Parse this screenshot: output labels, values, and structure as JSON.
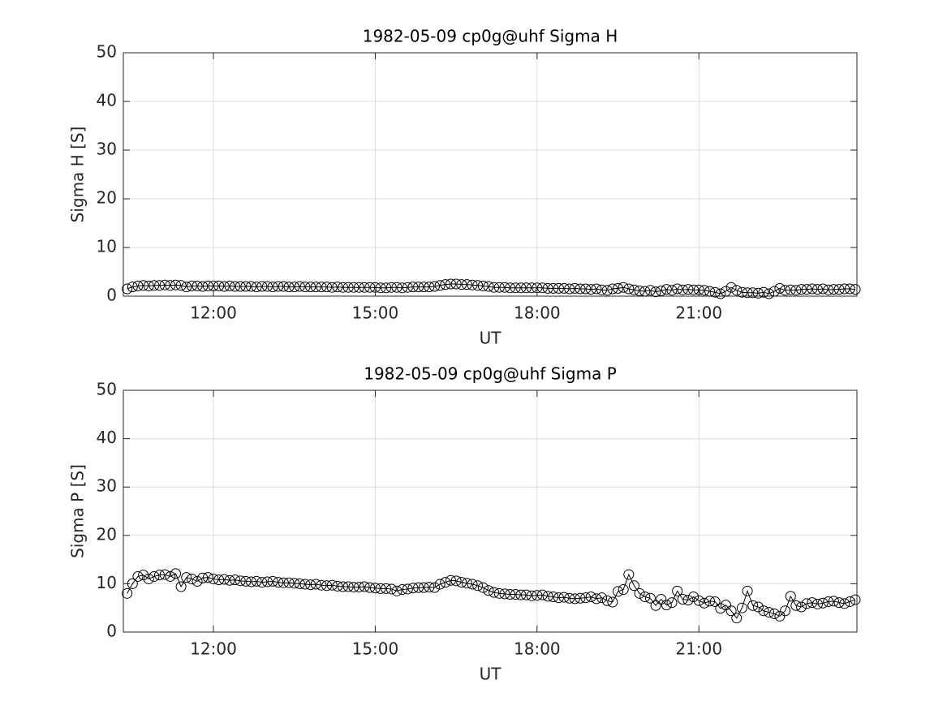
{
  "chart_data": [
    {
      "type": "line",
      "title": "1982-05-09  cp0g@uhf Sigma H",
      "xlabel": "UT",
      "ylabel": "Sigma H [S]",
      "color": "#000000",
      "marker": "circle",
      "grid": true,
      "xlim": [
        10.33,
        23.93
      ],
      "xticks": [
        {
          "value": 12,
          "label": "12:00"
        },
        {
          "value": 15,
          "label": "15:00"
        },
        {
          "value": 18,
          "label": "18:00"
        },
        {
          "value": 21,
          "label": "21:00"
        }
      ],
      "ylim": [
        0,
        50
      ],
      "yticks": [
        0,
        10,
        20,
        30,
        40,
        50
      ],
      "x": [
        10.4,
        10.5,
        10.6,
        10.7,
        10.8,
        10.9,
        11.0,
        11.1,
        11.2,
        11.3,
        11.4,
        11.5,
        11.6,
        11.7,
        11.8,
        11.9,
        12.0,
        12.1,
        12.2,
        12.3,
        12.4,
        12.5,
        12.6,
        12.7,
        12.8,
        12.9,
        13.0,
        13.1,
        13.2,
        13.3,
        13.4,
        13.5,
        13.6,
        13.7,
        13.8,
        13.9,
        14.0,
        14.1,
        14.2,
        14.3,
        14.4,
        14.5,
        14.6,
        14.7,
        14.8,
        14.9,
        15.0,
        15.1,
        15.2,
        15.3,
        15.4,
        15.5,
        15.6,
        15.7,
        15.8,
        15.9,
        16.0,
        16.1,
        16.2,
        16.3,
        16.4,
        16.5,
        16.6,
        16.7,
        16.8,
        16.9,
        17.0,
        17.1,
        17.2,
        17.3,
        17.4,
        17.5,
        17.6,
        17.7,
        17.8,
        17.9,
        18.0,
        18.1,
        18.2,
        18.3,
        18.4,
        18.5,
        18.6,
        18.7,
        18.8,
        18.9,
        19.0,
        19.1,
        19.2,
        19.3,
        19.4,
        19.5,
        19.6,
        19.7,
        19.8,
        19.9,
        20.0,
        20.1,
        20.2,
        20.3,
        20.4,
        20.5,
        20.6,
        20.7,
        20.8,
        20.9,
        21.0,
        21.1,
        21.2,
        21.3,
        21.4,
        21.5,
        21.6,
        21.7,
        21.8,
        21.9,
        22.0,
        22.1,
        22.2,
        22.3,
        22.4,
        22.5,
        22.6,
        22.7,
        22.8,
        22.9,
        23.0,
        23.1,
        23.2,
        23.3,
        23.4,
        23.5,
        23.6,
        23.7,
        23.8,
        23.9
      ],
      "values": [
        1.5,
        1.9,
        2.1,
        2.2,
        2.1,
        2.2,
        2.2,
        2.3,
        2.2,
        2.3,
        2.2,
        1.9,
        2.1,
        2.1,
        2.0,
        2.1,
        2.1,
        2.1,
        2.0,
        2.1,
        2.0,
        2.0,
        2.0,
        2.0,
        1.9,
        2.0,
        2.0,
        1.9,
        2.0,
        2.0,
        1.9,
        1.9,
        2.0,
        1.9,
        1.9,
        1.9,
        1.9,
        1.9,
        1.8,
        1.9,
        1.8,
        1.8,
        1.8,
        1.8,
        1.8,
        1.8,
        1.8,
        1.7,
        1.7,
        1.8,
        1.8,
        1.7,
        1.8,
        1.9,
        1.9,
        1.9,
        1.9,
        2.0,
        2.2,
        2.4,
        2.5,
        2.5,
        2.4,
        2.4,
        2.3,
        2.2,
        2.1,
        2.0,
        1.8,
        1.8,
        1.8,
        1.7,
        1.7,
        1.7,
        1.7,
        1.7,
        1.7,
        1.7,
        1.6,
        1.6,
        1.6,
        1.6,
        1.5,
        1.6,
        1.5,
        1.5,
        1.4,
        1.5,
        1.3,
        1.2,
        1.5,
        1.6,
        1.8,
        1.5,
        1.3,
        1.1,
        1.0,
        1.2,
        0.9,
        1.1,
        1.4,
        1.2,
        1.5,
        1.3,
        1.4,
        1.3,
        1.3,
        1.2,
        1.0,
        0.8,
        0.5,
        1.0,
        1.8,
        1.2,
        0.8,
        0.7,
        0.7,
        0.6,
        0.8,
        0.5,
        1.0,
        1.6,
        1.2,
        1.3,
        1.2,
        1.4,
        1.4,
        1.5,
        1.4,
        1.5,
        1.3,
        1.4,
        1.4,
        1.5,
        1.5,
        1.4
      ]
    },
    {
      "type": "line",
      "title": "1982-05-09  cp0g@uhf Sigma P",
      "xlabel": "UT",
      "ylabel": "Sigma P [S]",
      "color": "#000000",
      "marker": "circle",
      "grid": true,
      "xlim": [
        10.33,
        23.93
      ],
      "xticks": [
        {
          "value": 12,
          "label": "12:00"
        },
        {
          "value": 15,
          "label": "15:00"
        },
        {
          "value": 18,
          "label": "18:00"
        },
        {
          "value": 21,
          "label": "21:00"
        }
      ],
      "ylim": [
        0,
        50
      ],
      "yticks": [
        0,
        10,
        20,
        30,
        40,
        50
      ],
      "x": [
        10.4,
        10.5,
        10.6,
        10.7,
        10.8,
        10.9,
        11.0,
        11.1,
        11.2,
        11.3,
        11.4,
        11.5,
        11.6,
        11.7,
        11.8,
        11.9,
        12.0,
        12.1,
        12.2,
        12.3,
        12.4,
        12.5,
        12.6,
        12.7,
        12.8,
        12.9,
        13.0,
        13.1,
        13.2,
        13.3,
        13.4,
        13.5,
        13.6,
        13.7,
        13.8,
        13.9,
        14.0,
        14.1,
        14.2,
        14.3,
        14.4,
        14.5,
        14.6,
        14.7,
        14.8,
        14.9,
        15.0,
        15.1,
        15.2,
        15.3,
        15.4,
        15.5,
        15.6,
        15.7,
        15.8,
        15.9,
        16.0,
        16.1,
        16.2,
        16.3,
        16.4,
        16.5,
        16.6,
        16.7,
        16.8,
        16.9,
        17.0,
        17.1,
        17.2,
        17.3,
        17.4,
        17.5,
        17.6,
        17.7,
        17.8,
        17.9,
        18.0,
        18.1,
        18.2,
        18.3,
        18.4,
        18.5,
        18.6,
        18.7,
        18.8,
        18.9,
        19.0,
        19.1,
        19.2,
        19.3,
        19.4,
        19.5,
        19.6,
        19.7,
        19.8,
        19.9,
        20.0,
        20.1,
        20.2,
        20.3,
        20.4,
        20.5,
        20.6,
        20.7,
        20.8,
        20.9,
        21.0,
        21.1,
        21.2,
        21.3,
        21.4,
        21.5,
        21.6,
        21.7,
        21.8,
        21.9,
        22.0,
        22.1,
        22.2,
        22.3,
        22.4,
        22.5,
        22.6,
        22.7,
        22.8,
        22.9,
        23.0,
        23.1,
        23.2,
        23.3,
        23.4,
        23.5,
        23.6,
        23.7,
        23.8,
        23.9
      ],
      "values": [
        8.0,
        10.0,
        11.5,
        11.8,
        11.0,
        11.5,
        11.8,
        11.9,
        11.5,
        12.1,
        9.4,
        11.3,
        11.0,
        10.5,
        11.2,
        11.3,
        11.0,
        10.8,
        10.9,
        10.7,
        10.8,
        10.6,
        10.5,
        10.4,
        10.5,
        10.3,
        10.4,
        10.5,
        10.3,
        10.2,
        10.2,
        10.1,
        10.0,
        9.9,
        9.8,
        9.9,
        9.7,
        9.6,
        9.7,
        9.5,
        9.4,
        9.4,
        9.3,
        9.3,
        9.4,
        9.2,
        9.1,
        9.0,
        9.0,
        8.9,
        8.5,
        8.8,
        8.9,
        9.1,
        9.2,
        9.2,
        9.3,
        9.2,
        9.9,
        10.3,
        10.7,
        10.6,
        10.3,
        10.1,
        9.9,
        9.6,
        9.2,
        8.6,
        8.2,
        8.0,
        7.9,
        7.8,
        7.8,
        7.7,
        7.7,
        7.5,
        7.6,
        7.7,
        7.4,
        7.3,
        7.1,
        7.2,
        7.0,
        6.9,
        7.0,
        7.1,
        7.3,
        6.9,
        7.1,
        6.5,
        6.2,
        8.4,
        8.8,
        11.9,
        9.6,
        8.0,
        7.3,
        7.0,
        5.5,
        6.8,
        5.6,
        6.1,
        8.5,
        6.8,
        6.6,
        7.3,
        6.5,
        6.0,
        6.4,
        6.3,
        4.9,
        5.6,
        4.4,
        2.9,
        5.0,
        8.5,
        5.5,
        5.2,
        4.4,
        4.1,
        3.8,
        3.3,
        4.4,
        7.4,
        5.5,
        5.2,
        5.9,
        6.1,
        5.8,
        6.0,
        6.3,
        6.4,
        6.1,
        5.9,
        6.3,
        6.7
      ]
    }
  ]
}
